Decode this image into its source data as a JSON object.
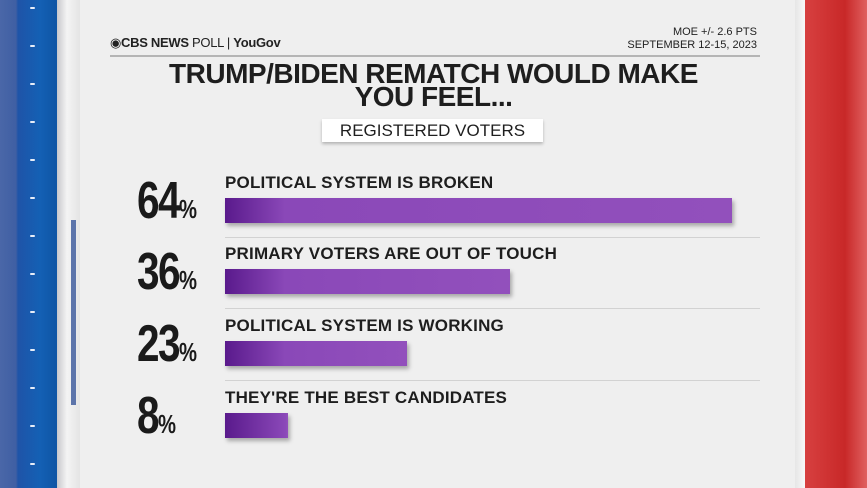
{
  "header": {
    "brand": "CBS NEWS",
    "poll": "POLL",
    "partner": "YouGov",
    "moe": "MOE +/- 2.6 PTS",
    "dates": "SEPTEMBER 12-15, 2023"
  },
  "colors": {
    "bar": "#8a48b8",
    "left_band": "#1460b4",
    "right_band": "#c82828"
  },
  "chart_data": {
    "type": "bar",
    "orientation": "horizontal",
    "title": "TRUMP/BIDEN REMATCH WOULD MAKE YOU FEEL...",
    "subtitle": "REGISTERED VOTERS",
    "categories": [
      "POLITICAL SYSTEM IS BROKEN",
      "PRIMARY VOTERS ARE OUT OF TOUCH",
      "POLITICAL SYSTEM IS WORKING",
      "THEY'RE THE BEST CANDIDATES"
    ],
    "values": [
      64,
      36,
      23,
      8
    ],
    "value_labels": [
      "64",
      "36",
      "23",
      "8"
    ],
    "unit": "%",
    "xlim": [
      0,
      64
    ]
  }
}
